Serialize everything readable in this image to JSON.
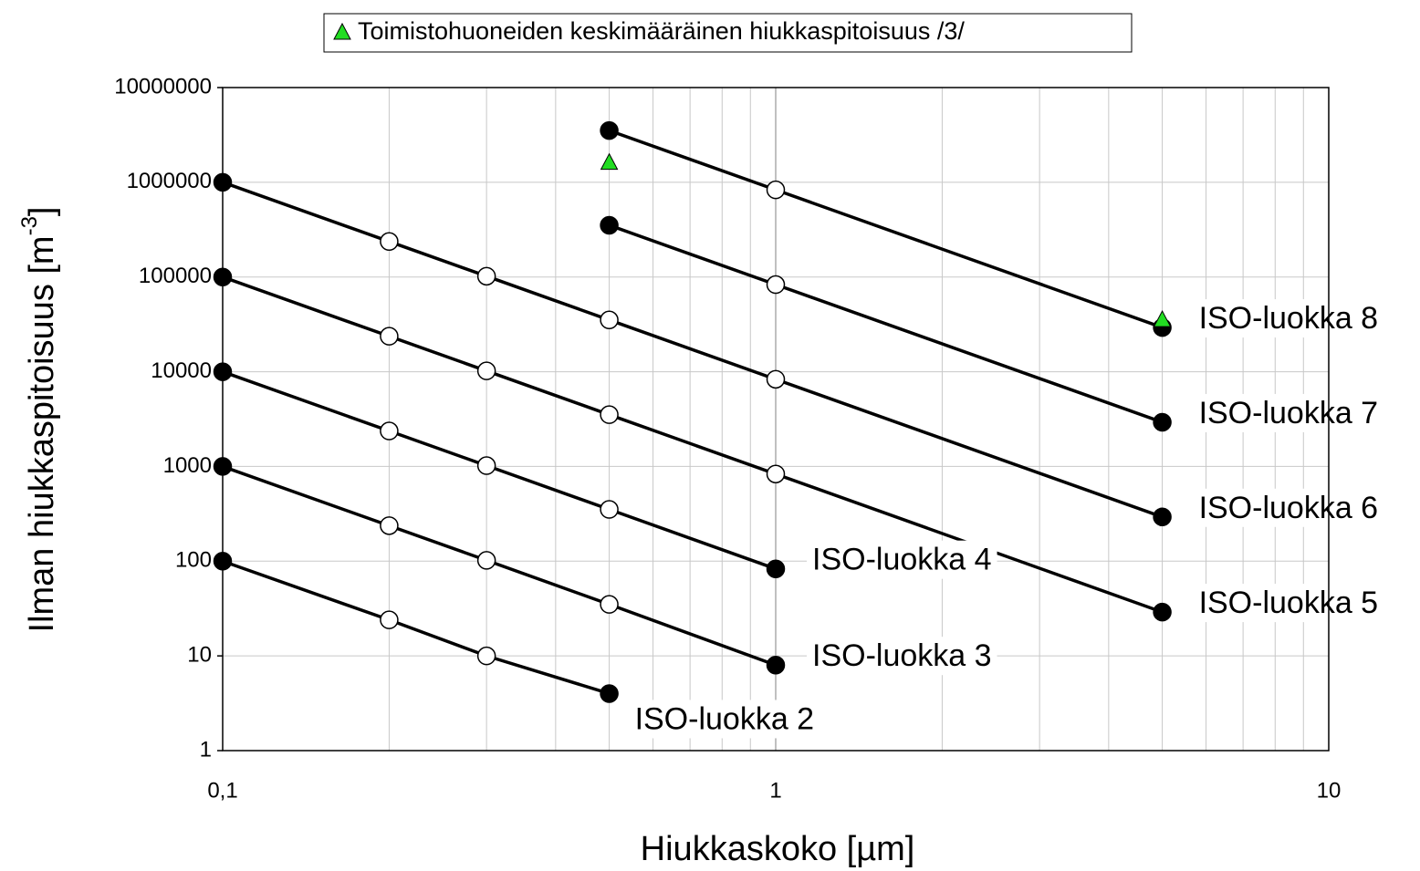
{
  "chart_data": {
    "type": "line",
    "xlabel": "Hiukkaskoko [µm]",
    "ylabel": {
      "text": "Ilman hiukkaspitoisuus [m",
      "sup": "-3",
      "end": "]"
    },
    "xscale": "log",
    "yscale": "log",
    "xlim": [
      0.1,
      10
    ],
    "ylim": [
      1,
      10000000
    ],
    "xticks": [
      {
        "value": 0.1,
        "label": "0,1"
      },
      1,
      10
    ],
    "yticks": [
      1,
      10,
      100,
      1000,
      10000,
      100000,
      1000000,
      10000000
    ],
    "grid": true,
    "legend": "top",
    "series": [
      {
        "name": "ISO-luokka 2",
        "color": "#000000",
        "x": [
          0.1,
          0.2,
          0.3,
          0.5
        ],
        "values": [
          100,
          24,
          10,
          4
        ]
      },
      {
        "name": "ISO-luokka 3",
        "color": "#000000",
        "x": [
          0.1,
          0.2,
          0.3,
          0.5,
          1
        ],
        "values": [
          1000,
          237,
          102,
          35,
          8
        ]
      },
      {
        "name": "ISO-luokka 4",
        "color": "#000000",
        "x": [
          0.1,
          0.2,
          0.3,
          0.5,
          1
        ],
        "values": [
          10000,
          2370,
          1020,
          352,
          83
        ]
      },
      {
        "name": "ISO-luokka 5",
        "color": "#000000",
        "x": [
          0.1,
          0.2,
          0.3,
          0.5,
          1,
          5
        ],
        "values": [
          100000,
          23700,
          10200,
          3520,
          832,
          29
        ]
      },
      {
        "name": "ISO-luokka 6",
        "color": "#000000",
        "x": [
          0.1,
          0.2,
          0.3,
          0.5,
          1,
          5
        ],
        "values": [
          1000000,
          237000,
          102000,
          35200,
          8320,
          293
        ]
      },
      {
        "name": "ISO-luokka 7",
        "color": "#000000",
        "x": [
          0.5,
          1,
          5
        ],
        "values": [
          352000,
          83200,
          2930
        ]
      },
      {
        "name": "ISO-luokka 8",
        "color": "#000000",
        "x": [
          0.5,
          1,
          5
        ],
        "values": [
          3520000,
          832000,
          29300
        ]
      },
      {
        "name": "Toimistohuoneiden keskimääräinen hiukkaspitoisuus /3/",
        "color": "#22dd22",
        "marker": "triangle",
        "line": false,
        "x": [
          0.5,
          5
        ],
        "values": [
          1600000,
          35000
        ]
      }
    ]
  }
}
